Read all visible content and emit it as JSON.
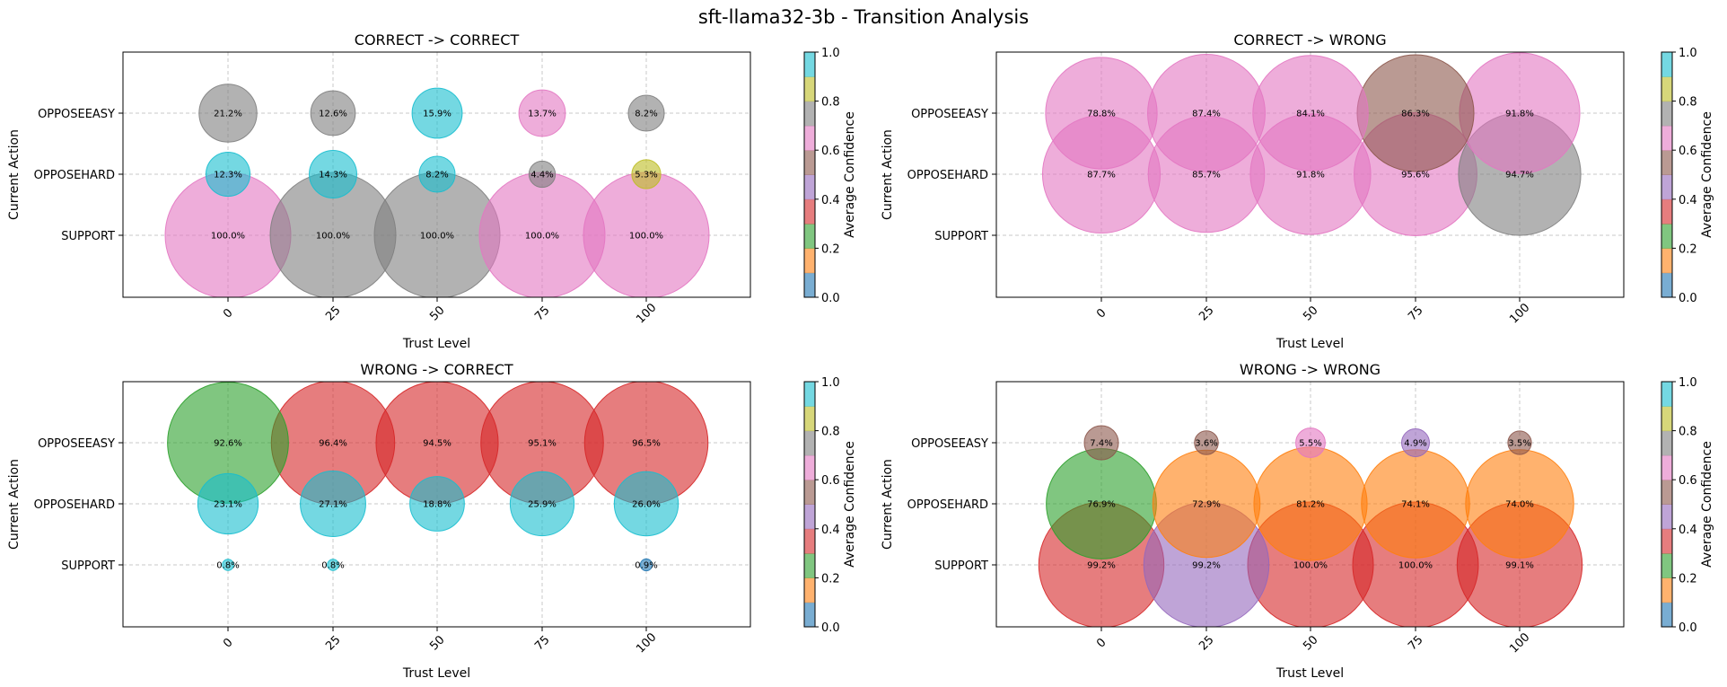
{
  "figure_title": "sft-llama32-3b - Transition Analysis",
  "colorbar": {
    "label": "Average Confidence",
    "ticks": [
      "0.0",
      "0.2",
      "0.4",
      "0.6",
      "0.8",
      "1.0"
    ],
    "colors": [
      "#1f77b4",
      "#ff7f0e",
      "#2ca02c",
      "#d62728",
      "#9467bd",
      "#8c564b",
      "#e377c2",
      "#7f7f7f",
      "#bcbd22",
      "#17becf"
    ]
  },
  "chart_data": [
    {
      "type": "scatter",
      "title": "CORRECT -> CORRECT",
      "xlabel": "Trust Level",
      "ylabel": "Current Action",
      "x_categories": [
        "0",
        "25",
        "50",
        "75",
        "100"
      ],
      "y_categories": [
        "SUPPORT",
        "OPPOSEHARD",
        "OPPOSEEASY"
      ],
      "points": [
        {
          "x": 0,
          "y": "OPPOSEEASY",
          "pct": 21.2,
          "label": "21.2%",
          "confidence": 0.75
        },
        {
          "x": 25,
          "y": "OPPOSEEASY",
          "pct": 12.6,
          "label": "12.6%",
          "confidence": 0.75
        },
        {
          "x": 50,
          "y": "OPPOSEEASY",
          "pct": 15.9,
          "label": "15.9%",
          "confidence": 0.95
        },
        {
          "x": 75,
          "y": "OPPOSEEASY",
          "pct": 13.7,
          "label": "13.7%",
          "confidence": 0.65
        },
        {
          "x": 100,
          "y": "OPPOSEEASY",
          "pct": 8.2,
          "label": "8.2%",
          "confidence": 0.75
        },
        {
          "x": 0,
          "y": "OPPOSEHARD",
          "pct": 12.3,
          "label": "12.3%",
          "confidence": 0.95
        },
        {
          "x": 25,
          "y": "OPPOSEHARD",
          "pct": 14.3,
          "label": "14.3%",
          "confidence": 0.95
        },
        {
          "x": 50,
          "y": "OPPOSEHARD",
          "pct": 8.2,
          "label": "8.2%",
          "confidence": 0.95
        },
        {
          "x": 75,
          "y": "OPPOSEHARD",
          "pct": 4.4,
          "label": "4.4%",
          "confidence": 0.75
        },
        {
          "x": 100,
          "y": "OPPOSEHARD",
          "pct": 5.3,
          "label": "5.3%",
          "confidence": 0.85
        },
        {
          "x": 0,
          "y": "SUPPORT",
          "pct": 100.0,
          "label": "100.0%",
          "confidence": 0.65
        },
        {
          "x": 25,
          "y": "SUPPORT",
          "pct": 100.0,
          "label": "100.0%",
          "confidence": 0.75
        },
        {
          "x": 50,
          "y": "SUPPORT",
          "pct": 100.0,
          "label": "100.0%",
          "confidence": 0.75
        },
        {
          "x": 75,
          "y": "SUPPORT",
          "pct": 100.0,
          "label": "100.0%",
          "confidence": 0.65
        },
        {
          "x": 100,
          "y": "SUPPORT",
          "pct": 100.0,
          "label": "100.0%",
          "confidence": 0.65
        }
      ]
    },
    {
      "type": "scatter",
      "title": "CORRECT -> WRONG",
      "xlabel": "Trust Level",
      "ylabel": "Current Action",
      "x_categories": [
        "0",
        "25",
        "50",
        "75",
        "100"
      ],
      "y_categories": [
        "SUPPORT",
        "OPPOSEHARD",
        "OPPOSEEASY"
      ],
      "points": [
        {
          "x": 0,
          "y": "OPPOSEEASY",
          "pct": 78.8,
          "label": "78.8%",
          "confidence": 0.65
        },
        {
          "x": 25,
          "y": "OPPOSEEASY",
          "pct": 87.4,
          "label": "87.4%",
          "confidence": 0.65
        },
        {
          "x": 50,
          "y": "OPPOSEEASY",
          "pct": 84.1,
          "label": "84.1%",
          "confidence": 0.65
        },
        {
          "x": 75,
          "y": "OPPOSEEASY",
          "pct": 86.3,
          "label": "86.3%",
          "confidence": 0.55
        },
        {
          "x": 100,
          "y": "OPPOSEEASY",
          "pct": 91.8,
          "label": "91.8%",
          "confidence": 0.65
        },
        {
          "x": 0,
          "y": "OPPOSEHARD",
          "pct": 87.7,
          "label": "87.7%",
          "confidence": 0.65
        },
        {
          "x": 25,
          "y": "OPPOSEHARD",
          "pct": 85.7,
          "label": "85.7%",
          "confidence": 0.65
        },
        {
          "x": 50,
          "y": "OPPOSEHARD",
          "pct": 91.8,
          "label": "91.8%",
          "confidence": 0.65
        },
        {
          "x": 75,
          "y": "OPPOSEHARD",
          "pct": 95.6,
          "label": "95.6%",
          "confidence": 0.65
        },
        {
          "x": 100,
          "y": "OPPOSEHARD",
          "pct": 94.7,
          "label": "94.7%",
          "confidence": 0.75
        }
      ]
    },
    {
      "type": "scatter",
      "title": "WRONG -> CORRECT",
      "xlabel": "Trust Level",
      "ylabel": "Current Action",
      "x_categories": [
        "0",
        "25",
        "50",
        "75",
        "100"
      ],
      "y_categories": [
        "SUPPORT",
        "OPPOSEHARD",
        "OPPOSEEASY"
      ],
      "points": [
        {
          "x": 0,
          "y": "OPPOSEEASY",
          "pct": 92.6,
          "label": "92.6%",
          "confidence": 0.25
        },
        {
          "x": 25,
          "y": "OPPOSEEASY",
          "pct": 96.4,
          "label": "96.4%",
          "confidence": 0.35
        },
        {
          "x": 50,
          "y": "OPPOSEEASY",
          "pct": 94.5,
          "label": "94.5%",
          "confidence": 0.35
        },
        {
          "x": 75,
          "y": "OPPOSEEASY",
          "pct": 95.1,
          "label": "95.1%",
          "confidence": 0.35
        },
        {
          "x": 100,
          "y": "OPPOSEEASY",
          "pct": 96.5,
          "label": "96.5%",
          "confidence": 0.35
        },
        {
          "x": 0,
          "y": "OPPOSEHARD",
          "pct": 23.1,
          "label": "23.1%",
          "confidence": 0.95
        },
        {
          "x": 25,
          "y": "OPPOSEHARD",
          "pct": 27.1,
          "label": "27.1%",
          "confidence": 0.95
        },
        {
          "x": 50,
          "y": "OPPOSEHARD",
          "pct": 18.8,
          "label": "18.8%",
          "confidence": 0.95
        },
        {
          "x": 75,
          "y": "OPPOSEHARD",
          "pct": 25.9,
          "label": "25.9%",
          "confidence": 0.95
        },
        {
          "x": 100,
          "y": "OPPOSEHARD",
          "pct": 26.0,
          "label": "26.0%",
          "confidence": 0.95
        },
        {
          "x": 0,
          "y": "SUPPORT",
          "pct": 0.8,
          "label": "0.8%",
          "confidence": 0.95
        },
        {
          "x": 25,
          "y": "SUPPORT",
          "pct": 0.8,
          "label": "0.8%",
          "confidence": 0.95
        },
        {
          "x": 100,
          "y": "SUPPORT",
          "pct": 0.9,
          "label": "0.9%",
          "confidence": 0.05
        }
      ]
    },
    {
      "type": "scatter",
      "title": "WRONG -> WRONG",
      "xlabel": "Trust Level",
      "ylabel": "Current Action",
      "x_categories": [
        "0",
        "25",
        "50",
        "75",
        "100"
      ],
      "y_categories": [
        "SUPPORT",
        "OPPOSEHARD",
        "OPPOSEEASY"
      ],
      "points": [
        {
          "x": 0,
          "y": "OPPOSEEASY",
          "pct": 7.4,
          "label": "7.4%",
          "confidence": 0.55
        },
        {
          "x": 25,
          "y": "OPPOSEEASY",
          "pct": 3.6,
          "label": "3.6%",
          "confidence": 0.55
        },
        {
          "x": 50,
          "y": "OPPOSEEASY",
          "pct": 5.5,
          "label": "5.5%",
          "confidence": 0.65
        },
        {
          "x": 75,
          "y": "OPPOSEEASY",
          "pct": 4.9,
          "label": "4.9%",
          "confidence": 0.45
        },
        {
          "x": 100,
          "y": "OPPOSEEASY",
          "pct": 3.5,
          "label": "3.5%",
          "confidence": 0.55
        },
        {
          "x": 0,
          "y": "OPPOSEHARD",
          "pct": 76.9,
          "label": "76.9%",
          "confidence": 0.25
        },
        {
          "x": 25,
          "y": "OPPOSEHARD",
          "pct": 72.9,
          "label": "72.9%",
          "confidence": 0.15
        },
        {
          "x": 50,
          "y": "OPPOSEHARD",
          "pct": 81.2,
          "label": "81.2%",
          "confidence": 0.15
        },
        {
          "x": 75,
          "y": "OPPOSEHARD",
          "pct": 74.1,
          "label": "74.1%",
          "confidence": 0.15
        },
        {
          "x": 100,
          "y": "OPPOSEHARD",
          "pct": 74.0,
          "label": "74.0%",
          "confidence": 0.15
        },
        {
          "x": 0,
          "y": "SUPPORT",
          "pct": 99.2,
          "label": "99.2%",
          "confidence": 0.35
        },
        {
          "x": 25,
          "y": "SUPPORT",
          "pct": 99.2,
          "label": "99.2%",
          "confidence": 0.45
        },
        {
          "x": 50,
          "y": "SUPPORT",
          "pct": 100.0,
          "label": "100.0%",
          "confidence": 0.35
        },
        {
          "x": 75,
          "y": "SUPPORT",
          "pct": 100.0,
          "label": "100.0%",
          "confidence": 0.35
        },
        {
          "x": 100,
          "y": "SUPPORT",
          "pct": 99.1,
          "label": "99.1%",
          "confidence": 0.35
        }
      ]
    }
  ]
}
